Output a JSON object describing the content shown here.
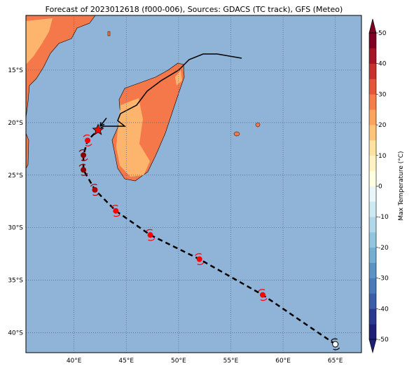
{
  "title": "Forecast of 2023012618 (f000-006), Sources: GDACS (TC track), GFS (Meteo)",
  "map": {
    "lon_lim": [
      35.4,
      67.5
    ],
    "lat_lim": [
      -41.9,
      -9.8
    ],
    "xticks": [
      {
        "value": 40,
        "label": "40°E"
      },
      {
        "value": 45,
        "label": "45°E"
      },
      {
        "value": 50,
        "label": "50°E"
      },
      {
        "value": 55,
        "label": "55°E"
      },
      {
        "value": 60,
        "label": "60°E"
      },
      {
        "value": 65,
        "label": "65°E"
      }
    ],
    "yticks": [
      {
        "value": -15,
        "label": "15°S"
      },
      {
        "value": -20,
        "label": "20°S"
      },
      {
        "value": -25,
        "label": "25°S"
      },
      {
        "value": -30,
        "label": "30°S"
      },
      {
        "value": -35,
        "label": "35°S"
      },
      {
        "value": -40,
        "label": "40°S"
      }
    ],
    "track": [
      {
        "lon": 65.0,
        "lat": -41.1,
        "color": "#ffffff"
      },
      {
        "lon": 58.05,
        "lat": -36.4,
        "color": "#ff0000"
      },
      {
        "lon": 52.0,
        "lat": -33.0,
        "color": "#ff0000"
      },
      {
        "lon": 47.3,
        "lat": -30.7,
        "color": "#ff0000"
      },
      {
        "lon": 44.0,
        "lat": -28.4,
        "color": "#ff0000"
      },
      {
        "lon": 42.0,
        "lat": -26.4,
        "color": "#b00000"
      },
      {
        "lon": 40.9,
        "lat": -24.5,
        "color": "#8b0000"
      },
      {
        "lon": 40.9,
        "lat": -23.1,
        "color": "#8b0000"
      },
      {
        "lon": 41.3,
        "lat": -21.7,
        "color": "#ff0000"
      }
    ],
    "current": {
      "lon": 42.3,
      "lat": -20.7,
      "color": "#ff0000"
    }
  },
  "colorbar": {
    "label": "Max Temperature (°C)",
    "lim": [
      -50,
      50
    ],
    "ticks": [
      50,
      40,
      30,
      20,
      10,
      0,
      -10,
      -20,
      -30,
      -40,
      -50
    ],
    "colors": [
      "#1f1f78",
      "#2b3a8f",
      "#3a5ea8",
      "#4a7ab8",
      "#5b94c4",
      "#74aed2",
      "#92c5de",
      "#b0d8e8",
      "#cde9f2",
      "#e8f6f9",
      "#fefee0",
      "#fff3c4",
      "#fee2a0",
      "#fdc47a",
      "#fca35d",
      "#f57d4a",
      "#e4553a",
      "#c8302b",
      "#a51526",
      "#7f0022"
    ]
  }
}
